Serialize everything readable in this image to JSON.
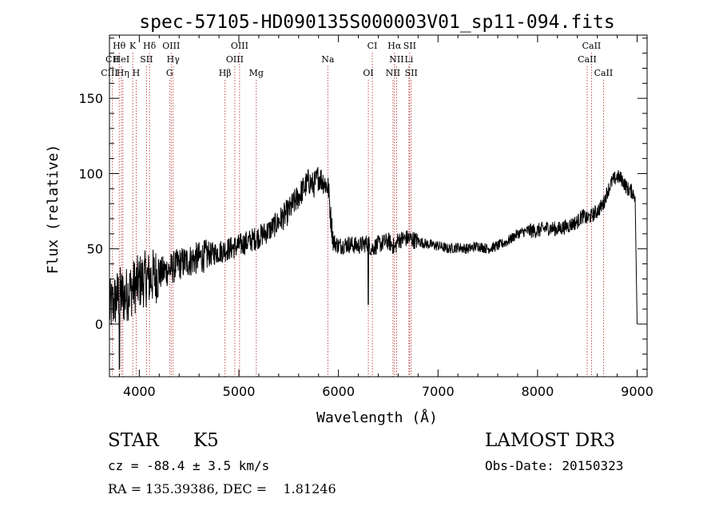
{
  "chart_data": {
    "type": "line",
    "title": "spec-57105-HD090135S000003V01_sp11-094.fits",
    "xlabel": "Wavelength (Å)",
    "ylabel": "Flux (relative)",
    "xlim": [
      3700,
      9100
    ],
    "ylim": [
      -35,
      192
    ],
    "x_ticks": [
      4000,
      5000,
      6000,
      7000,
      8000,
      9000
    ],
    "y_ticks": [
      0,
      50,
      100,
      150
    ],
    "series": [
      {
        "name": "spectrum",
        "x": [
          3700,
          3750,
          3800,
          3850,
          3900,
          3950,
          4000,
          4050,
          4100,
          4150,
          4200,
          4250,
          4300,
          4350,
          4400,
          4500,
          4600,
          4700,
          4800,
          4900,
          5000,
          5100,
          5200,
          5300,
          5400,
          5500,
          5600,
          5700,
          5750,
          5800,
          5850,
          5900,
          5920,
          5950,
          6000,
          6100,
          6200,
          6300,
          6330,
          6400,
          6500,
          6550,
          6563,
          6600,
          6700,
          6800,
          6900,
          7000,
          7100,
          7200,
          7300,
          7400,
          7500,
          7600,
          7700,
          7800,
          7900,
          8000,
          8100,
          8200,
          8300,
          8400,
          8450,
          8498,
          8542,
          8600,
          8662,
          8700,
          8750,
          8800,
          8850,
          8900,
          8950,
          8980,
          9000
        ],
        "y": [
          10,
          15,
          20,
          18,
          22,
          25,
          28,
          30,
          30,
          32,
          33,
          35,
          36,
          38,
          40,
          42,
          44,
          46,
          48,
          50,
          52,
          55,
          58,
          62,
          68,
          75,
          85,
          95,
          92,
          98,
          95,
          90,
          72,
          55,
          52,
          53,
          52,
          54,
          50,
          53,
          55,
          52,
          50,
          56,
          57,
          55,
          53,
          52,
          50,
          51,
          50,
          52,
          50,
          52,
          55,
          60,
          62,
          62,
          64,
          63,
          65,
          68,
          72,
          70,
          72,
          75,
          80,
          88,
          95,
          98,
          96,
          90,
          88,
          85,
          0
        ]
      }
    ],
    "lines": [
      {
        "label": "Hθ",
        "x": 3798,
        "row": 0
      },
      {
        "label": "K",
        "x": 3934,
        "row": 0
      },
      {
        "label": "Hδ",
        "x": 4102,
        "row": 0
      },
      {
        "label": "OIII",
        "x": 4320,
        "row": 0
      },
      {
        "label": "OIII",
        "x": 5007,
        "row": 0
      },
      {
        "label": "CI",
        "x": 6340,
        "row": 0
      },
      {
        "label": "Hα",
        "x": 6563,
        "row": 0
      },
      {
        "label": "SII",
        "x": 6716,
        "row": 0
      },
      {
        "label": "CaII",
        "x": 8542,
        "row": 0
      },
      {
        "label": "CII",
        "x": 3730,
        "row": 1
      },
      {
        "label": "HeI",
        "x": 3820,
        "row": 1
      },
      {
        "label": "SII",
        "x": 4072,
        "row": 1
      },
      {
        "label": "Hγ",
        "x": 4340,
        "row": 1
      },
      {
        "label": "OIII",
        "x": 4959,
        "row": 1
      },
      {
        "label": "Na",
        "x": 5893,
        "row": 1
      },
      {
        "label": "NII",
        "x": 6584,
        "row": 1
      },
      {
        "label": "Li",
        "x": 6708,
        "row": 1
      },
      {
        "label": "CaII",
        "x": 8498,
        "row": 1
      },
      {
        "label": "CIII",
        "x": 3700,
        "row": 2
      },
      {
        "label": "Hη",
        "x": 3835,
        "row": 2
      },
      {
        "label": "H",
        "x": 3968,
        "row": 2
      },
      {
        "label": "G",
        "x": 4304,
        "row": 2
      },
      {
        "label": "Hβ",
        "x": 4861,
        "row": 2
      },
      {
        "label": "Mg",
        "x": 5175,
        "row": 2
      },
      {
        "label": "OI",
        "x": 6300,
        "row": 2
      },
      {
        "label": "NII",
        "x": 6548,
        "row": 2
      },
      {
        "label": "SII",
        "x": 6731,
        "row": 2
      },
      {
        "label": "CaII",
        "x": 8662,
        "row": 2
      }
    ]
  },
  "info": {
    "class_label": "STAR",
    "subclass_label": "K5",
    "survey": "LAMOST DR3",
    "cz_line": "cz = -88.4 ± 3.5 km/s",
    "obs_date_line": "Obs-Date: 20150323",
    "radec_line": "RA = 135.39386, DEC =    1.81246"
  },
  "colors": {
    "line_marker": "#b22222",
    "spectrum": "#000000",
    "axis": "#000000"
  }
}
